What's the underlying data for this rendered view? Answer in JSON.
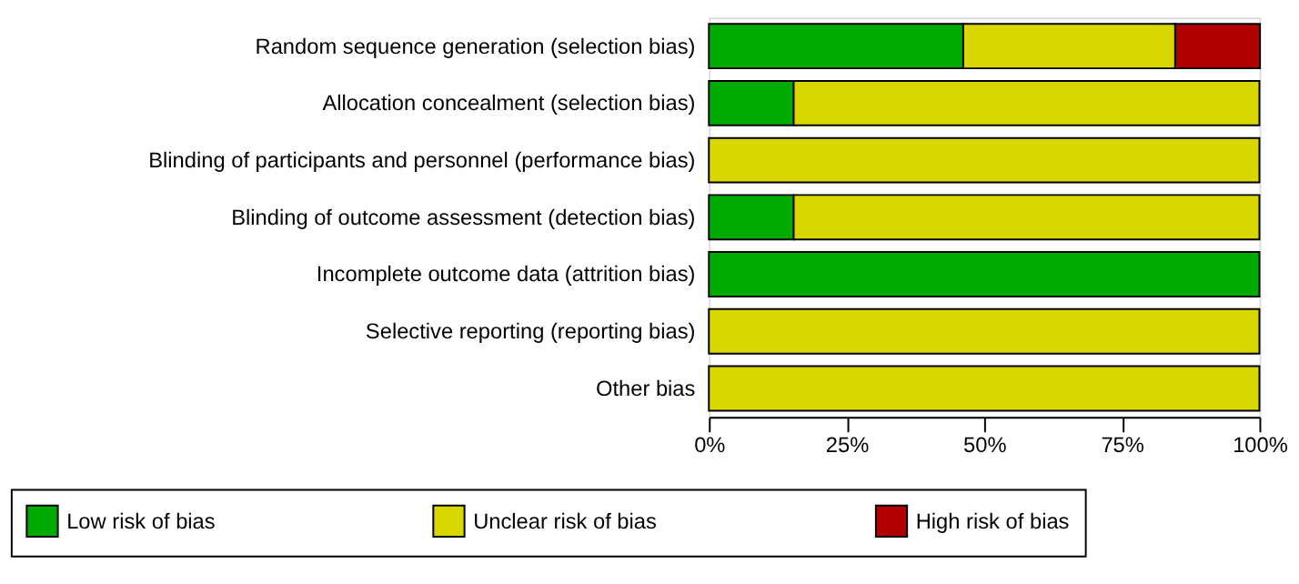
{
  "chart_data": {
    "type": "bar",
    "orientation": "horizontal",
    "stacked": true,
    "categories": [
      "Random sequence generation (selection bias)",
      "Allocation concealment (selection bias)",
      "Blinding of participants and personnel (performance bias)",
      "Blinding of outcome assessment (detection bias)",
      "Incomplete outcome data (attrition bias)",
      "Selective reporting (reporting bias)",
      "Other bias"
    ],
    "series": [
      {
        "name": "Low risk of bias",
        "color": "#00aa00",
        "values": [
          46.2,
          15.4,
          0,
          15.4,
          100,
          0,
          0
        ]
      },
      {
        "name": "Unclear risk of bias",
        "color": "#d8d800",
        "values": [
          38.5,
          84.6,
          100,
          84.6,
          0,
          100,
          100
        ]
      },
      {
        "name": "High risk of bias",
        "color": "#b00000",
        "values": [
          15.4,
          0,
          0,
          0,
          0,
          0,
          0
        ]
      }
    ],
    "xlim": [
      0,
      100
    ],
    "xticks": [
      {
        "value": 0,
        "label": "0%"
      },
      {
        "value": 25,
        "label": "25%"
      },
      {
        "value": 50,
        "label": "50%"
      },
      {
        "value": 75,
        "label": "75%"
      },
      {
        "value": 100,
        "label": "100%"
      }
    ],
    "grid": false,
    "legend": "bottom"
  }
}
